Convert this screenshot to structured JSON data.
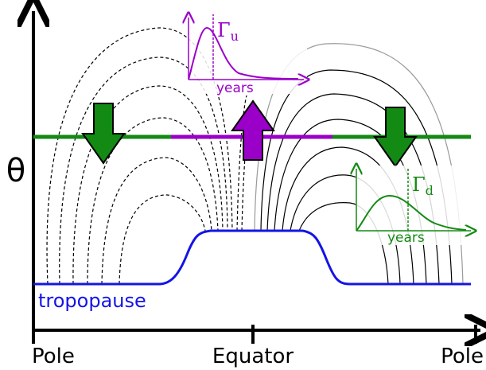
{
  "axis": {
    "y_label": "θ",
    "x_labels": [
      "Pole",
      "Equator",
      "Pole"
    ]
  },
  "tropopause_label": "tropopause",
  "insets": [
    {
      "symbol": "Γ",
      "subscript": "u",
      "x_label": "years"
    },
    {
      "symbol": "Γ",
      "subscript": "d",
      "x_label": "years"
    }
  ]
}
